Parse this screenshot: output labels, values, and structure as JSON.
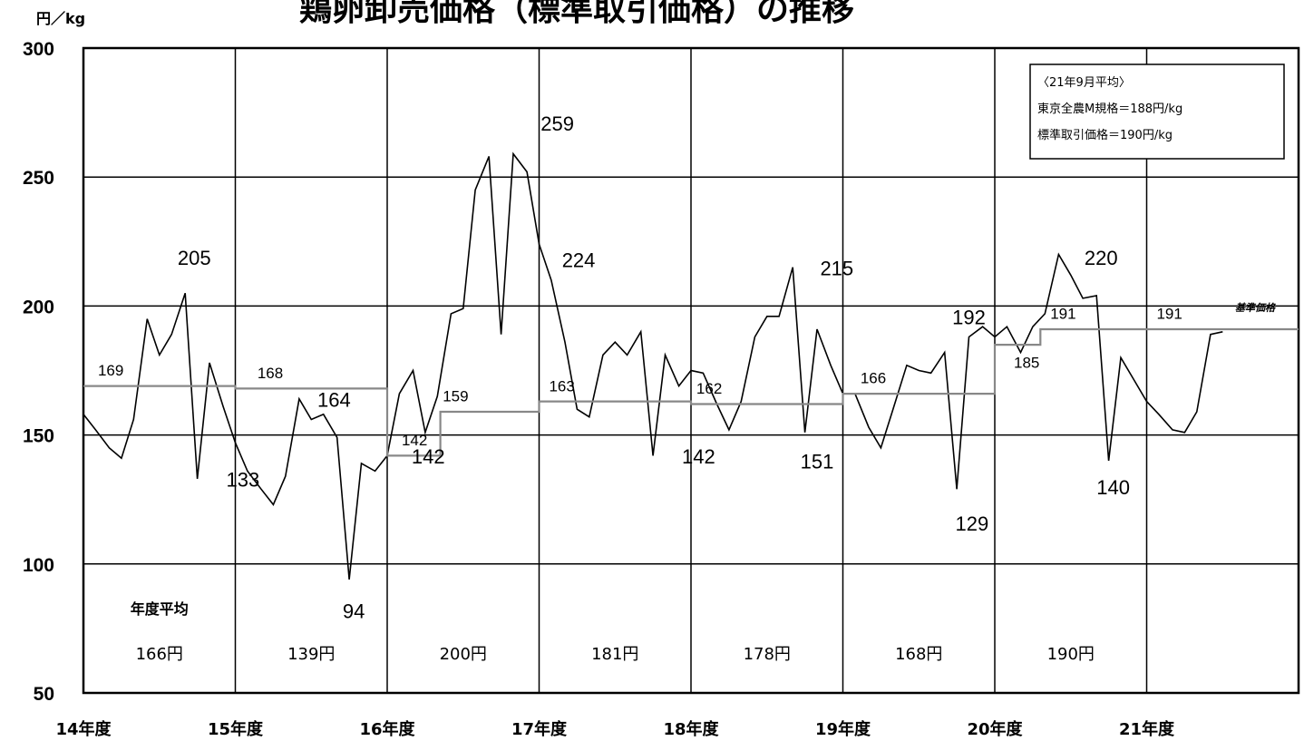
{
  "chart_data": {
    "type": "line",
    "title": "鶏卵卸売価格（標準取引価格）の推移",
    "unit_label": "円／kg",
    "ylim": [
      50,
      300
    ],
    "yticks": [
      "50",
      "100",
      "150",
      "200",
      "250",
      "300"
    ],
    "xticks": [
      "14年度",
      "15年度",
      "16年度",
      "17年度",
      "18年度",
      "19年度",
      "20年度",
      "21年度"
    ],
    "grid": true,
    "series": [
      {
        "key": "price",
        "color": "#000000",
        "x": [
          14.0,
          14.08,
          14.17,
          14.25,
          14.33,
          14.42,
          14.5,
          14.58,
          14.67,
          14.75,
          14.83,
          14.92,
          15.0,
          15.08,
          15.17,
          15.25,
          15.33,
          15.42,
          15.5,
          15.58,
          15.67,
          15.75,
          15.83,
          15.92,
          16.0,
          16.08,
          16.17,
          16.25,
          16.33,
          16.42,
          16.5,
          16.58,
          16.67,
          16.75,
          16.83,
          16.92,
          17.0,
          17.08,
          17.17,
          17.25,
          17.33,
          17.42,
          17.5,
          17.58,
          17.67,
          17.75,
          17.83,
          17.92,
          18.0,
          18.08,
          18.17,
          18.25,
          18.33,
          18.42,
          18.5,
          18.58,
          18.67,
          18.75,
          18.83,
          18.92,
          19.0,
          19.08,
          19.17,
          19.25,
          19.33,
          19.42,
          19.5,
          19.58,
          19.67,
          19.75,
          19.83,
          19.92,
          20.0,
          20.08,
          20.17,
          20.25,
          20.33,
          20.42,
          20.5,
          20.58,
          20.67,
          20.75,
          20.83,
          20.92,
          21.0,
          21.08,
          21.17,
          21.25,
          21.33,
          21.42,
          21.5
        ],
        "values": [
          158,
          152,
          145,
          141,
          156,
          195,
          181,
          189,
          205,
          133,
          178,
          161,
          147,
          136,
          129,
          123,
          134,
          164,
          156,
          158,
          149,
          94,
          139,
          136,
          142,
          166,
          175,
          151,
          165,
          197,
          199,
          245,
          258,
          189,
          259,
          252,
          224,
          210,
          186,
          160,
          157,
          181,
          186,
          181,
          190,
          142,
          181,
          169,
          175,
          174,
          162,
          152,
          163,
          188,
          196,
          196,
          215,
          151,
          191,
          177,
          166,
          166,
          153,
          145,
          160,
          177,
          175,
          174,
          182,
          129,
          188,
          192,
          188,
          192,
          182,
          192,
          197,
          220,
          212,
          203,
          204,
          140,
          180,
          171,
          163,
          158,
          152,
          151,
          159,
          189,
          190
        ]
      },
      {
        "key": "benchmark",
        "color": "#888888",
        "x": [
          14.0,
          15.0,
          15.0,
          16.0,
          16.0,
          16.35,
          16.35,
          17.0,
          17.0,
          18.0,
          18.0,
          19.0,
          19.0,
          20.0,
          20.0,
          20.3,
          20.3,
          22.0
        ],
        "values": [
          169,
          169,
          168,
          168,
          142,
          142,
          159,
          159,
          163,
          163,
          162,
          162,
          166,
          166,
          185,
          185,
          191,
          191
        ]
      }
    ],
    "annotations": [
      {
        "text": "205",
        "x": 14.73,
        "y": 216,
        "size": "large"
      },
      {
        "text": "133",
        "x": 15.05,
        "y": 130,
        "size": "large"
      },
      {
        "text": "164",
        "x": 15.65,
        "y": 161,
        "size": "large"
      },
      {
        "text": "94",
        "x": 15.78,
        "y": 79,
        "size": "large"
      },
      {
        "text": "142",
        "x": 16.27,
        "y": 139,
        "size": "large"
      },
      {
        "text": "259",
        "x": 17.12,
        "y": 268,
        "size": "large"
      },
      {
        "text": "224",
        "x": 17.26,
        "y": 215,
        "size": "large"
      },
      {
        "text": "142",
        "x": 18.05,
        "y": 139,
        "size": "large"
      },
      {
        "text": "215",
        "x": 18.96,
        "y": 212,
        "size": "large"
      },
      {
        "text": "151",
        "x": 18.83,
        "y": 137,
        "size": "large"
      },
      {
        "text": "192",
        "x": 19.83,
        "y": 193,
        "size": "large"
      },
      {
        "text": "129",
        "x": 19.85,
        "y": 113,
        "size": "large"
      },
      {
        "text": "220",
        "x": 20.7,
        "y": 216,
        "size": "large"
      },
      {
        "text": "140",
        "x": 20.78,
        "y": 127,
        "size": "large"
      },
      {
        "text": "169",
        "x": 14.18,
        "y": 173,
        "size": "small"
      },
      {
        "text": "168",
        "x": 15.23,
        "y": 172,
        "size": "small"
      },
      {
        "text": "142",
        "x": 16.18,
        "y": 146,
        "size": "small"
      },
      {
        "text": "159",
        "x": 16.45,
        "y": 163,
        "size": "small"
      },
      {
        "text": "163",
        "x": 17.15,
        "y": 167,
        "size": "small"
      },
      {
        "text": "162",
        "x": 18.12,
        "y": 166,
        "size": "small"
      },
      {
        "text": "166",
        "x": 19.2,
        "y": 170,
        "size": "small"
      },
      {
        "text": "185",
        "x": 20.21,
        "y": 176,
        "size": "small"
      },
      {
        "text": "191",
        "x": 20.45,
        "y": 195,
        "size": "small"
      },
      {
        "text": "191",
        "x": 21.15,
        "y": 195,
        "size": "small"
      }
    ],
    "year_average_caption": "年度平均",
    "year_averages": [
      "166円",
      "139円",
      "200円",
      "181円",
      "178円",
      "168円",
      "190円"
    ],
    "benchmark_label": "基準価格",
    "legend": {
      "position": "top-right",
      "lines": [
        "〈21年9月平均〉",
        "東京全農M規格＝188円/kg",
        "標準取引価格＝190円/kg"
      ]
    }
  }
}
